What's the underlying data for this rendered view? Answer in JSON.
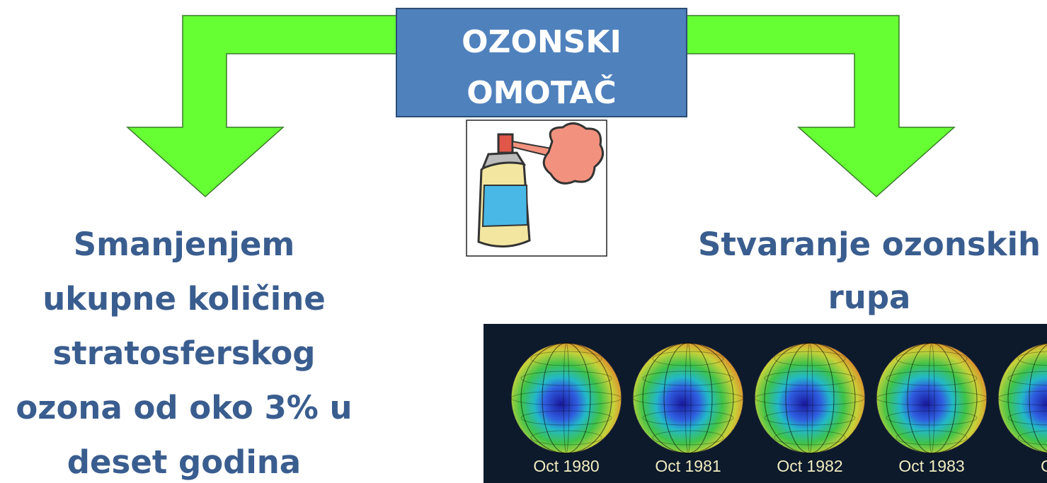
{
  "title": {
    "lines": [
      "OZONSKI",
      "OMOTAČ"
    ]
  },
  "left_text": {
    "lines": [
      "Smanjenjem",
      "ukupne količine",
      "stratosferskog",
      "ozona od oko 3% u",
      "deset godina"
    ]
  },
  "right_text": {
    "lines": [
      "Stvaranje ozonskih",
      "rupa"
    ]
  },
  "globes": {
    "labels": [
      "Oct 1980",
      "Oct 1981",
      "Oct 1982",
      "Oct 1983",
      "Oct"
    ]
  }
}
